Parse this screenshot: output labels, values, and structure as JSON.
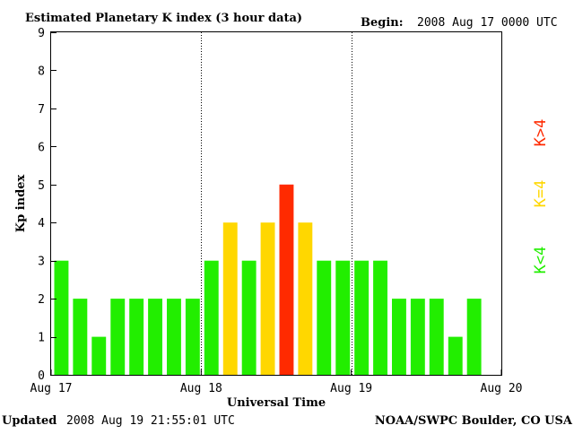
{
  "header": {
    "title": "Estimated Planetary K index (3 hour data)",
    "begin_label": "Begin:",
    "begin_value": "2008 Aug 17 0000 UTC"
  },
  "footer": {
    "updated_label": "Updated",
    "updated_value": "2008 Aug 19 21:55:01 UTC",
    "source": "NOAA/SWPC Boulder, CO USA"
  },
  "legend": [
    {
      "label": "K>4",
      "color": "#ff2a00"
    },
    {
      "label": "K=4",
      "color": "#ffd700"
    },
    {
      "label": "K<4",
      "color": "#22ee00"
    }
  ],
  "chart_data": {
    "type": "bar",
    "title": "Estimated Planetary K index (3 hour data)",
    "xlabel": "Universal Time",
    "ylabel": "Kp index",
    "ylim": [
      0,
      9
    ],
    "yticks": [
      "0",
      "1",
      "2",
      "3",
      "4",
      "5",
      "6",
      "7",
      "8",
      "9"
    ],
    "xlim_hours": [
      0,
      72
    ],
    "bar_interval_hours": 3,
    "xticks": [
      {
        "hour": 0,
        "label": "Aug 17"
      },
      {
        "hour": 24,
        "label": "Aug 18"
      },
      {
        "hour": 48,
        "label": "Aug 19"
      },
      {
        "hour": 72,
        "label": "Aug 20"
      }
    ],
    "day_divider_hours": [
      24,
      48
    ],
    "values": [
      3,
      2,
      1,
      2,
      2,
      2,
      2,
      2,
      3,
      4,
      3,
      4,
      5,
      4,
      3,
      3,
      3,
      3,
      2,
      2,
      2,
      1,
      2
    ],
    "color_rule": {
      "below": "#22ee00",
      "equal": "#ffd700",
      "above": "#ff2a00",
      "threshold": 4
    },
    "grid": false
  }
}
